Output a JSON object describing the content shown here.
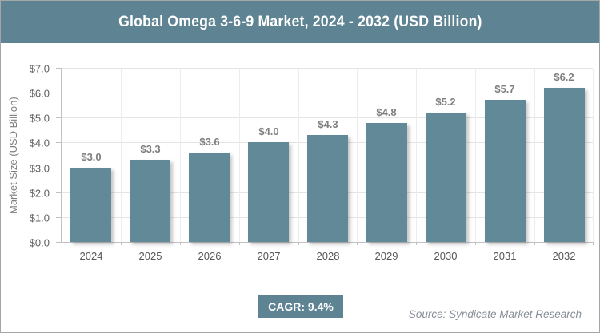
{
  "header": {
    "title": "Global Omega 3-6-9 Market, 2024 - 2032 (USD Billion)"
  },
  "chart_data": {
    "type": "bar",
    "title": "Global Omega 3-6-9 Market, 2024 - 2032 (USD Billion)",
    "categories": [
      "2024",
      "2025",
      "2026",
      "2027",
      "2028",
      "2029",
      "2030",
      "2031",
      "2032"
    ],
    "values": [
      3.0,
      3.3,
      3.6,
      4.0,
      4.3,
      4.8,
      5.2,
      5.7,
      6.2
    ],
    "bar_labels": [
      "$3.0",
      "$3.3",
      "$3.6",
      "$4.0",
      "$4.3",
      "$4.8",
      "$5.2",
      "$5.7",
      "$6.2"
    ],
    "xlabel": "",
    "ylabel": "Market Size (USD Billion)",
    "ylim": [
      0,
      7
    ],
    "ytick_step": 1,
    "ytick_labels": [
      "$0.0",
      "$1.0",
      "$2.0",
      "$3.0",
      "$4.0",
      "$5.0",
      "$6.0",
      "$7.0"
    ],
    "grid": true,
    "legend": "none",
    "bar_color": "#618998"
  },
  "footer": {
    "cagr_label": "CAGR: 9.4%",
    "source": "Source: Syndicate Market Research"
  },
  "colors": {
    "header_bg": "#5e8392",
    "cagr_bg": "#5e8392",
    "bar_fill": "#618998",
    "grid_line": "#e4e4e4",
    "axis_line": "#c2c2c2",
    "value_label": "#7f7f7f",
    "tick_label": "#606060",
    "source_text": "#878e98"
  }
}
